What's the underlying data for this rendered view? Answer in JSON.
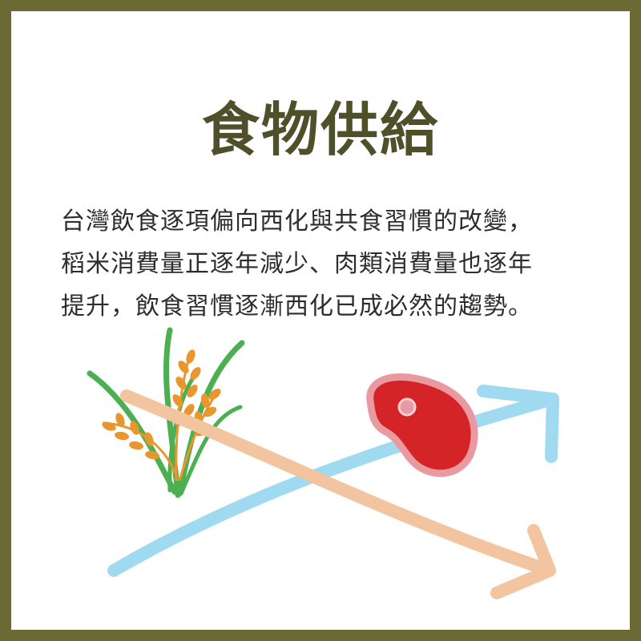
{
  "title": "食物供給",
  "paragraph": {
    "lines": [
      "台灣飲食逐項偏向西化與共食習慣的改變，",
      "稻米消費量正逐年減少、肉類消費量也逐年",
      "提升，飲食習慣逐漸西化已成必然的趨勢。"
    ]
  },
  "colors": {
    "frame": "#6b6a34",
    "title": "#4f4f2a",
    "rising_arrow": "#9fdaf0",
    "falling_arrow": "#f2c4a0",
    "meat": "#d42428",
    "meat_outline": "#e99aa0",
    "rice_stalk": "#4caf50",
    "rice_grain": "#e8962e"
  },
  "icons": {
    "rice": "rice-plant-icon",
    "meat": "meat-steak-icon",
    "up": "upward-arrow-icon",
    "down": "downward-arrow-icon"
  }
}
